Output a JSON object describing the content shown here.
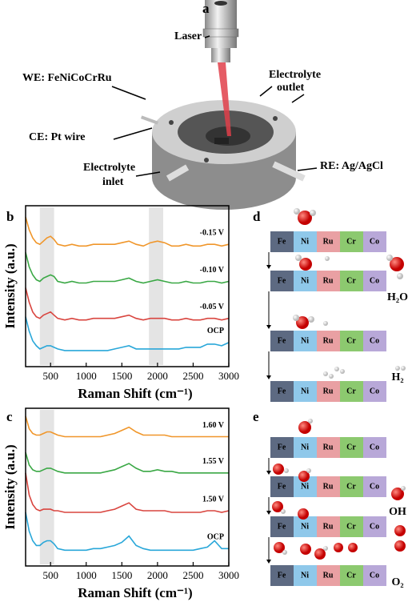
{
  "panel_a": {
    "letter": "a",
    "labels": [
      "Laser",
      "WE: FeNiCoCrRu",
      "Electrolyte",
      "outlet",
      "CE: Pt wire",
      "Electrolyte",
      "inlet",
      "RE: Ag/AgCl"
    ]
  },
  "chart_data": [
    {
      "type": "line",
      "letter": "b",
      "x_label": "Raman Shift (cm⁻¹)",
      "y_label": "Intensity (a.u.)",
      "x": [
        150,
        200,
        250,
        300,
        350,
        400,
        450,
        500,
        550,
        600,
        700,
        800,
        900,
        1000,
        1100,
        1200,
        1300,
        1400,
        1500,
        1600,
        1700,
        1800,
        1900,
        2000,
        2100,
        2200,
        2300,
        2400,
        2500,
        2600,
        2700,
        2800,
        2900,
        3000
      ],
      "xlim": [
        150,
        3000
      ],
      "xticks": [
        500,
        1000,
        1500,
        2000,
        2500,
        3000
      ],
      "ylim": [
        0,
        100
      ],
      "highlight_ranges": [
        [
          350,
          550
        ],
        [
          1880,
          2080
        ]
      ],
      "series": [
        {
          "name": "-0.15 V",
          "color": "#f0962a",
          "values": [
            93,
            85,
            80,
            77,
            76,
            78,
            80,
            81,
            79,
            76,
            75,
            76,
            75,
            75,
            76,
            76,
            76,
            76,
            77,
            78,
            76,
            75,
            77,
            78,
            77,
            75,
            75,
            76,
            75,
            75,
            76,
            76,
            75,
            76
          ]
        },
        {
          "name": "-0.10 V",
          "color": "#3aa845",
          "values": [
            71,
            62,
            57,
            54,
            53,
            55,
            56,
            57,
            56,
            53,
            52,
            53,
            52,
            52,
            53,
            53,
            53,
            53,
            54,
            55,
            53,
            52,
            53,
            54,
            53,
            52,
            52,
            53,
            52,
            52,
            53,
            53,
            52,
            53
          ]
        },
        {
          "name": "-0.05 V",
          "color": "#d9453f",
          "values": [
            49,
            40,
            34,
            31,
            30,
            32,
            33,
            34,
            32,
            30,
            29,
            30,
            29,
            29,
            30,
            30,
            30,
            30,
            31,
            32,
            30,
            29,
            30,
            30,
            30,
            29,
            29,
            30,
            29,
            29,
            30,
            30,
            29,
            30
          ]
        },
        {
          "name": "OCP",
          "color": "#29a7d9",
          "values": [
            31,
            22,
            16,
            13,
            11,
            12,
            13,
            13,
            12,
            11,
            10,
            10,
            10,
            10,
            10,
            10,
            10,
            11,
            12,
            13,
            11,
            11,
            11,
            11,
            11,
            11,
            11,
            12,
            12,
            12,
            14,
            14,
            13,
            15
          ]
        }
      ]
    },
    {
      "type": "line",
      "letter": "c",
      "x_label": "Raman Shift (cm⁻¹)",
      "y_label": "Intensity (a.u.)",
      "x": [
        150,
        200,
        250,
        300,
        350,
        400,
        450,
        500,
        550,
        600,
        700,
        800,
        900,
        1000,
        1100,
        1200,
        1300,
        1400,
        1500,
        1600,
        1700,
        1800,
        1900,
        2000,
        2100,
        2200,
        2300,
        2400,
        2500,
        2600,
        2700,
        2800,
        2900,
        3000
      ],
      "xlim": [
        150,
        3000
      ],
      "xticks": [
        500,
        1000,
        1500,
        2000,
        2500,
        3000
      ],
      "ylim": [
        0,
        100
      ],
      "highlight_ranges": [
        [
          350,
          550
        ]
      ],
      "series": [
        {
          "name": "1.60 V",
          "color": "#f0962a",
          "values": [
            95,
            87,
            84,
            83,
            83,
            84,
            85,
            85,
            84,
            83,
            82,
            82,
            82,
            82,
            82,
            82,
            83,
            84,
            86,
            88,
            85,
            83,
            83,
            83,
            83,
            82,
            82,
            82,
            82,
            82,
            82,
            82,
            82,
            82
          ]
        },
        {
          "name": "1.55 V",
          "color": "#3aa845",
          "values": [
            72,
            64,
            61,
            60,
            60,
            61,
            62,
            62,
            61,
            60,
            59,
            59,
            59,
            59,
            59,
            59,
            60,
            61,
            63,
            65,
            62,
            60,
            60,
            61,
            60,
            60,
            59,
            59,
            59,
            59,
            59,
            59,
            59,
            59
          ]
        },
        {
          "name": "1.50 V",
          "color": "#d9453f",
          "values": [
            59,
            45,
            39,
            36,
            35,
            36,
            36,
            36,
            35,
            35,
            34,
            34,
            34,
            34,
            34,
            34,
            35,
            36,
            38,
            40,
            36,
            35,
            35,
            35,
            35,
            34,
            34,
            34,
            34,
            34,
            35,
            35,
            34,
            35
          ]
        },
        {
          "name": "OCP",
          "color": "#29a7d9",
          "values": [
            34,
            22,
            16,
            13,
            13,
            15,
            16,
            16,
            14,
            11,
            10,
            10,
            10,
            10,
            11,
            11,
            12,
            13,
            15,
            19,
            13,
            11,
            10,
            10,
            10,
            10,
            10,
            10,
            10,
            11,
            12,
            16,
            11,
            11
          ]
        }
      ]
    }
  ],
  "diagram_d": {
    "letter": "d",
    "elements": [
      "Fe",
      "Ni",
      "Ru",
      "Cr",
      "Co"
    ],
    "labels": [
      "H₂O",
      "H₂"
    ]
  },
  "diagram_e": {
    "letter": "e",
    "elements": [
      "Fe",
      "Ni",
      "Ru",
      "Cr",
      "Co"
    ],
    "labels": [
      "OH",
      "O₂"
    ]
  }
}
